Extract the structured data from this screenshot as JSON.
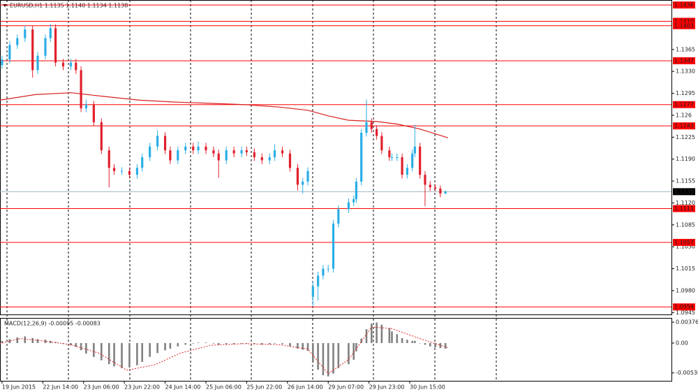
{
  "chart_data": [
    {
      "type": "candlestick",
      "title": "EURUSD,H1  1.1135 1.1140 1.1134 1.1138",
      "xlim": [
        -0.8,
        262.7
      ],
      "ylim": [
        1.0942,
        1.1444
      ],
      "xticks": [
        {
          "value": 0,
          "label": "19 Jun 2015"
        },
        {
          "value": 16,
          "label": "22 Jun 14:00"
        },
        {
          "value": 32,
          "label": "23 Jun 06:00"
        },
        {
          "value": 48,
          "label": "23 Jun 22:00"
        },
        {
          "value": 64,
          "label": "24 Jun 14:00"
        },
        {
          "value": 80,
          "label": "25 Jun 06:00"
        },
        {
          "value": 96,
          "label": "25 Jun 22:00"
        },
        {
          "value": 112,
          "label": "26 Jun 14:00"
        },
        {
          "value": 128,
          "label": "29 Jun 07:00"
        },
        {
          "value": 144,
          "label": "29 Jun 23:00"
        },
        {
          "value": 160,
          "label": "30 Jun 15:00"
        }
      ],
      "yticks": [
        1.1365,
        {
          "value": 1.133,
          "label": "1.1330"
        },
        1.1295,
        1.126,
        1.1225,
        {
          "value": 1.119,
          "label": "1.1190"
        },
        1.1155,
        {
          "value": 1.112,
          "label": "1.1120"
        },
        1.1085,
        {
          "value": 1.105,
          "label": "1.1050"
        },
        1.1015,
        {
          "value": 1.098,
          "label": "1.0980"
        },
        1.0945
      ],
      "up_color": "#2aaee6",
      "down_color": "#e0202c",
      "x": [
        0,
        3,
        6,
        9,
        12,
        14,
        17,
        19,
        21,
        24,
        27,
        29,
        31,
        33,
        36,
        39,
        42,
        44,
        47,
        50,
        53,
        55,
        58,
        61,
        64,
        66,
        69,
        72,
        75,
        77,
        80,
        83,
        85,
        88,
        91,
        94,
        96,
        99,
        102,
        105,
        107,
        110,
        113,
        116,
        118,
        120,
        122,
        124,
        126,
        128,
        130,
        132,
        136,
        138,
        139,
        141,
        143,
        145,
        147,
        149,
        152,
        153,
        155,
        157,
        159,
        161,
        162,
        164,
        166,
        168,
        170,
        172,
        174
      ],
      "open": [
        1.134,
        1.1349,
        1.1372,
        1.1383,
        1.1397,
        1.1332,
        1.1355,
        1.1383,
        1.1399,
        1.1344,
        1.1338,
        1.1344,
        1.1332,
        1.1271,
        1.1277,
        1.1249,
        1.1204,
        1.1176,
        1.1171,
        1.1171,
        1.1165,
        1.1176,
        1.1193,
        1.121,
        1.1227,
        1.1204,
        1.1188,
        1.1204,
        1.121,
        1.1204,
        1.121,
        1.1204,
        1.1199,
        1.1188,
        1.1204,
        1.1199,
        1.1204,
        1.1201,
        1.1193,
        1.1188,
        1.1193,
        1.1204,
        1.1199,
        1.1176,
        1.1149,
        1.1154,
        1.097,
        1.0987,
        1.1004,
        1.1015,
        1.1015,
        1.1087,
        1.111,
        1.1121,
        1.1126,
        1.1154,
        1.1232,
        1.1249,
        1.1238,
        1.1227,
        1.1204,
        1.1193,
        1.1193,
        1.1193,
        1.1165,
        1.1176,
        1.1199,
        1.121,
        1.1165,
        1.1149,
        1.1145,
        1.1143,
        1.1135
      ],
      "high": [
        1.1355,
        1.1378,
        1.1389,
        1.1403,
        1.1403,
        1.1361,
        1.1389,
        1.1406,
        1.1405,
        1.135,
        1.135,
        1.135,
        1.1338,
        1.1285,
        1.1283,
        1.1255,
        1.121,
        1.1182,
        1.1177,
        1.1177,
        1.1182,
        1.1199,
        1.1216,
        1.1236,
        1.1233,
        1.121,
        1.121,
        1.1216,
        1.1216,
        1.1218,
        1.1216,
        1.121,
        1.1205,
        1.121,
        1.121,
        1.121,
        1.121,
        1.1207,
        1.1199,
        1.1199,
        1.1214,
        1.121,
        1.1205,
        1.1182,
        1.116,
        1.1177,
        1.0995,
        1.101,
        1.1021,
        1.1021,
        1.1093,
        1.1116,
        1.1127,
        1.1132,
        1.116,
        1.1238,
        1.1285,
        1.1255,
        1.1244,
        1.1233,
        1.121,
        1.1199,
        1.1199,
        1.1199,
        1.1182,
        1.1205,
        1.1245,
        1.1216,
        1.1171,
        1.1155,
        1.115,
        1.1148,
        1.114
      ],
      "low": [
        1.1334,
        1.1343,
        1.1366,
        1.1377,
        1.132,
        1.1326,
        1.1349,
        1.1377,
        1.1338,
        1.1332,
        1.1332,
        1.1326,
        1.1265,
        1.1265,
        1.1243,
        1.1198,
        1.1145,
        1.1165,
        1.1165,
        1.1159,
        1.1159,
        1.117,
        1.1187,
        1.1204,
        1.1198,
        1.1182,
        1.1182,
        1.1198,
        1.1198,
        1.1198,
        1.1198,
        1.1193,
        1.116,
        1.1182,
        1.1193,
        1.1193,
        1.1195,
        1.1187,
        1.1182,
        1.1182,
        1.1187,
        1.1193,
        1.117,
        1.114,
        1.1135,
        1.1148,
        1.0955,
        1.0964,
        1.0998,
        1.1009,
        1.1009,
        1.1081,
        1.1104,
        1.1115,
        1.112,
        1.1148,
        1.1226,
        1.1232,
        1.1221,
        1.1198,
        1.1187,
        1.1187,
        1.1187,
        1.1159,
        1.1159,
        1.117,
        1.1193,
        1.1159,
        1.1115,
        1.1139,
        1.1139,
        1.1129,
        1.1134
      ],
      "close": [
        1.1349,
        1.1372,
        1.1383,
        1.1397,
        1.1332,
        1.1355,
        1.1383,
        1.1399,
        1.1344,
        1.1338,
        1.1344,
        1.1332,
        1.1271,
        1.1277,
        1.1249,
        1.1204,
        1.1176,
        1.1171,
        1.1171,
        1.1165,
        1.1176,
        1.1193,
        1.121,
        1.1227,
        1.1204,
        1.1188,
        1.1204,
        1.121,
        1.1204,
        1.121,
        1.1204,
        1.1199,
        1.1188,
        1.1204,
        1.1199,
        1.1204,
        1.1201,
        1.1193,
        1.1188,
        1.1193,
        1.1204,
        1.1199,
        1.1176,
        1.1149,
        1.1154,
        1.1171,
        1.0987,
        1.1004,
        1.1015,
        1.1015,
        1.1087,
        1.111,
        1.1121,
        1.1126,
        1.1154,
        1.1232,
        1.1249,
        1.1238,
        1.1227,
        1.1204,
        1.1193,
        1.1193,
        1.1193,
        1.1165,
        1.1176,
        1.1199,
        1.121,
        1.1165,
        1.1149,
        1.1145,
        1.1143,
        1.1135,
        1.1138
      ],
      "ma": {
        "color": "#d92020",
        "x": [
          -1,
          13,
          27,
          40,
          54,
          68,
          82,
          95,
          109,
          120,
          128,
          136,
          147,
          155,
          164,
          175
        ],
        "values": [
          1.1284,
          1.1293,
          1.1296,
          1.129,
          1.1284,
          1.1281,
          1.1279,
          1.1277,
          1.1273,
          1.1268,
          1.1259,
          1.1252,
          1.125,
          1.1246,
          1.1238,
          1.1224
        ]
      },
      "levels": [
        1.1436,
        {
          "value": 1.141,
          "label": "1.1410"
        },
        1.1403,
        1.1347,
        1.1277,
        1.1243,
        1.1111,
        1.1057,
        1.0954
      ],
      "level_color": "#ff0000",
      "current_price": 1.1138
    },
    {
      "type": "macd",
      "title": "MACD(12,26,9) -0.00095 -0.00083",
      "ylim": [
        -0.0068,
        0.0044
      ],
      "yticks": [
        0.00376,
        {
          "value": 0,
          "label": "0.00"
        },
        -0.00538
      ],
      "bar_color": "#808080",
      "values": [
        0.0004,
        0.0007,
        0.001,
        0.0012,
        0.0009,
        0.0007,
        0.0006,
        0.0004,
        0.0002,
        -0.0001,
        -0.0004,
        -0.0007,
        -0.0013,
        -0.0019,
        -0.0025,
        -0.0031,
        -0.0038,
        -0.0042,
        -0.0045,
        -0.0044,
        -0.004,
        -0.0034,
        -0.0025,
        -0.0018,
        -0.0013,
        -0.001,
        -0.0006,
        -0.0003,
        -0.0001,
        0.0001,
        0.0001,
        -0.0001,
        -0.0003,
        -0.0002,
        -0.0002,
        -0.0001,
        -0.0001,
        -0.0002,
        -0.0003,
        -0.0002,
        -0.0001,
        -0.0002,
        -0.0006,
        -0.001,
        -0.0012,
        -0.0014,
        -0.0035,
        -0.0048,
        -0.0058,
        -0.006,
        -0.0055,
        -0.0045,
        -0.0038,
        -0.003,
        -0.0015,
        0.0008,
        0.0025,
        0.0035,
        0.0037,
        0.0033,
        0.0027,
        0.0021,
        0.0016,
        0.0009,
        0.0006,
        0.0004,
        0.0004,
        0.0,
        -0.0003,
        -0.0006,
        -0.0008,
        -0.0009,
        -0.001
      ],
      "signal": {
        "color": "#e02020",
        "x": [
          -1,
          7,
          16,
          27,
          38,
          49,
          60,
          70,
          82,
          95,
          109,
          120,
          128,
          136,
          145,
          153,
          164,
          175
        ],
        "values": [
          -0.0001,
          0.0008,
          0.0004,
          -0.0003,
          -0.0018,
          -0.0049,
          -0.0039,
          -0.0018,
          -0.0004,
          -0.0001,
          -0.0003,
          -0.0011,
          -0.0055,
          -0.003,
          0.0029,
          0.0026,
          0.0008,
          -0.00083
        ]
      }
    }
  ]
}
